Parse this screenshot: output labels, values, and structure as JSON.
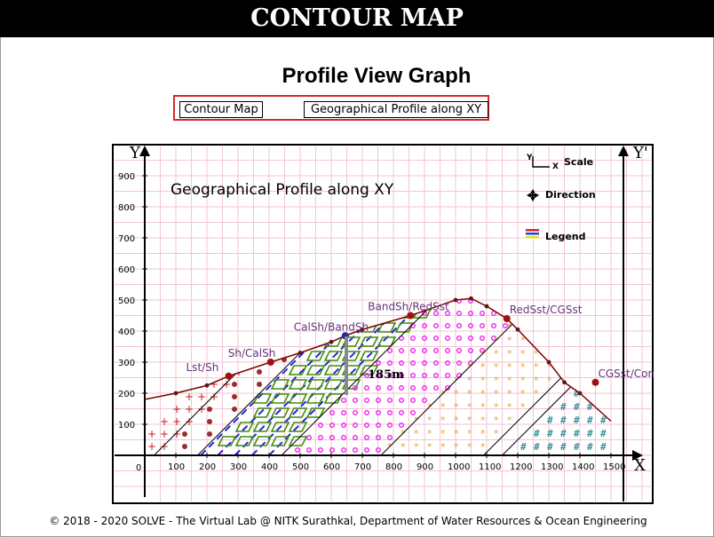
{
  "header": {
    "title": "CONTOUR MAP"
  },
  "page_title": "Profile View Graph",
  "nav": {
    "contour_map": "Contour Map",
    "geo_profile": "Geographical Profile along XY"
  },
  "graph": {
    "title": "Geographical Profile along XY",
    "y_axis_label": "Y",
    "y_prime_label": "Y'",
    "x_axis_label": "X",
    "origin_label": "0",
    "x_ticks": [
      "100",
      "200",
      "300",
      "400",
      "500",
      "600",
      "700",
      "800",
      "900",
      "1000",
      "1100",
      "1200",
      "1300",
      "1400",
      "1500"
    ],
    "y_ticks": [
      "100",
      "200",
      "300",
      "400",
      "500",
      "600",
      "700",
      "800",
      "900"
    ],
    "scale_label": "Scale",
    "scale_icon_y": "Y",
    "scale_icon_x": "X",
    "direction_label": "Direction",
    "legend_label": "Legend",
    "height_marker": "185m",
    "layers": [
      {
        "label": "Lst/Sh",
        "x": 270,
        "y": 255
      },
      {
        "label": "Sh/CalSh",
        "x": 405,
        "y": 300
      },
      {
        "label": "CalSh/BandSh",
        "x": 645,
        "y": 385
      },
      {
        "label": "BandSh/RedSst",
        "x": 855,
        "y": 450
      },
      {
        "label": "RedSst/CGSst",
        "x": 1165,
        "y": 440
      },
      {
        "label": "CGSst/Cong",
        "x": 1450,
        "y": 235
      }
    ],
    "profile": [
      [
        0,
        180
      ],
      [
        100,
        200
      ],
      [
        200,
        225
      ],
      [
        270,
        255
      ],
      [
        405,
        300
      ],
      [
        500,
        330
      ],
      [
        600,
        365
      ],
      [
        645,
        385
      ],
      [
        700,
        405
      ],
      [
        855,
        450
      ],
      [
        1000,
        500
      ],
      [
        1050,
        505
      ],
      [
        1100,
        480
      ],
      [
        1165,
        440
      ],
      [
        1200,
        405
      ],
      [
        1300,
        300
      ],
      [
        1350,
        235
      ],
      [
        1400,
        200
      ],
      [
        1500,
        110
      ]
    ],
    "colors": {
      "profile": "#800000",
      "layer_label": "#66337a",
      "plus": "#c81e1e",
      "dot": "#9b2c2c",
      "dash": "#2323e0",
      "parallelogram": "#3e8f0a",
      "circle": "#ee22ee",
      "asterisk": "#e6a23c",
      "hash": "#3d8f9a"
    }
  },
  "footer": "© 2018 - 2020 SOLVE - The Virtual Lab @ NITK Surathkal, Department of Water Resources & Ocean Engineering"
}
